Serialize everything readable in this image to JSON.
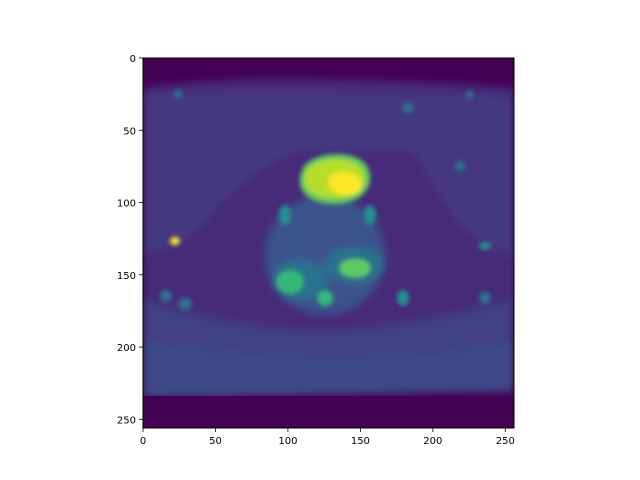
{
  "chart_data": {
    "type": "heatmap",
    "title": "",
    "xlabel": "",
    "ylabel": "",
    "xlim": [
      0,
      256
    ],
    "ylim": [
      256,
      0
    ],
    "x_ticks": [
      0,
      50,
      100,
      150,
      200,
      250
    ],
    "y_ticks": [
      0,
      50,
      100,
      150,
      200,
      250
    ],
    "x_tick_labels": [
      "0",
      "50",
      "100",
      "150",
      "200",
      "250"
    ],
    "y_tick_labels": [
      "0",
      "50",
      "100",
      "150",
      "200",
      "250"
    ],
    "image_size": [
      256,
      256
    ],
    "colormap": "viridis",
    "content": "axial MRI slice of pelvis with bright bladder region",
    "colors": {
      "background_min": "#440154",
      "tissue_low": "#3b528b",
      "tissue_mid": "#21918c",
      "tissue_high": "#5ec962",
      "peak": "#fde725"
    }
  }
}
